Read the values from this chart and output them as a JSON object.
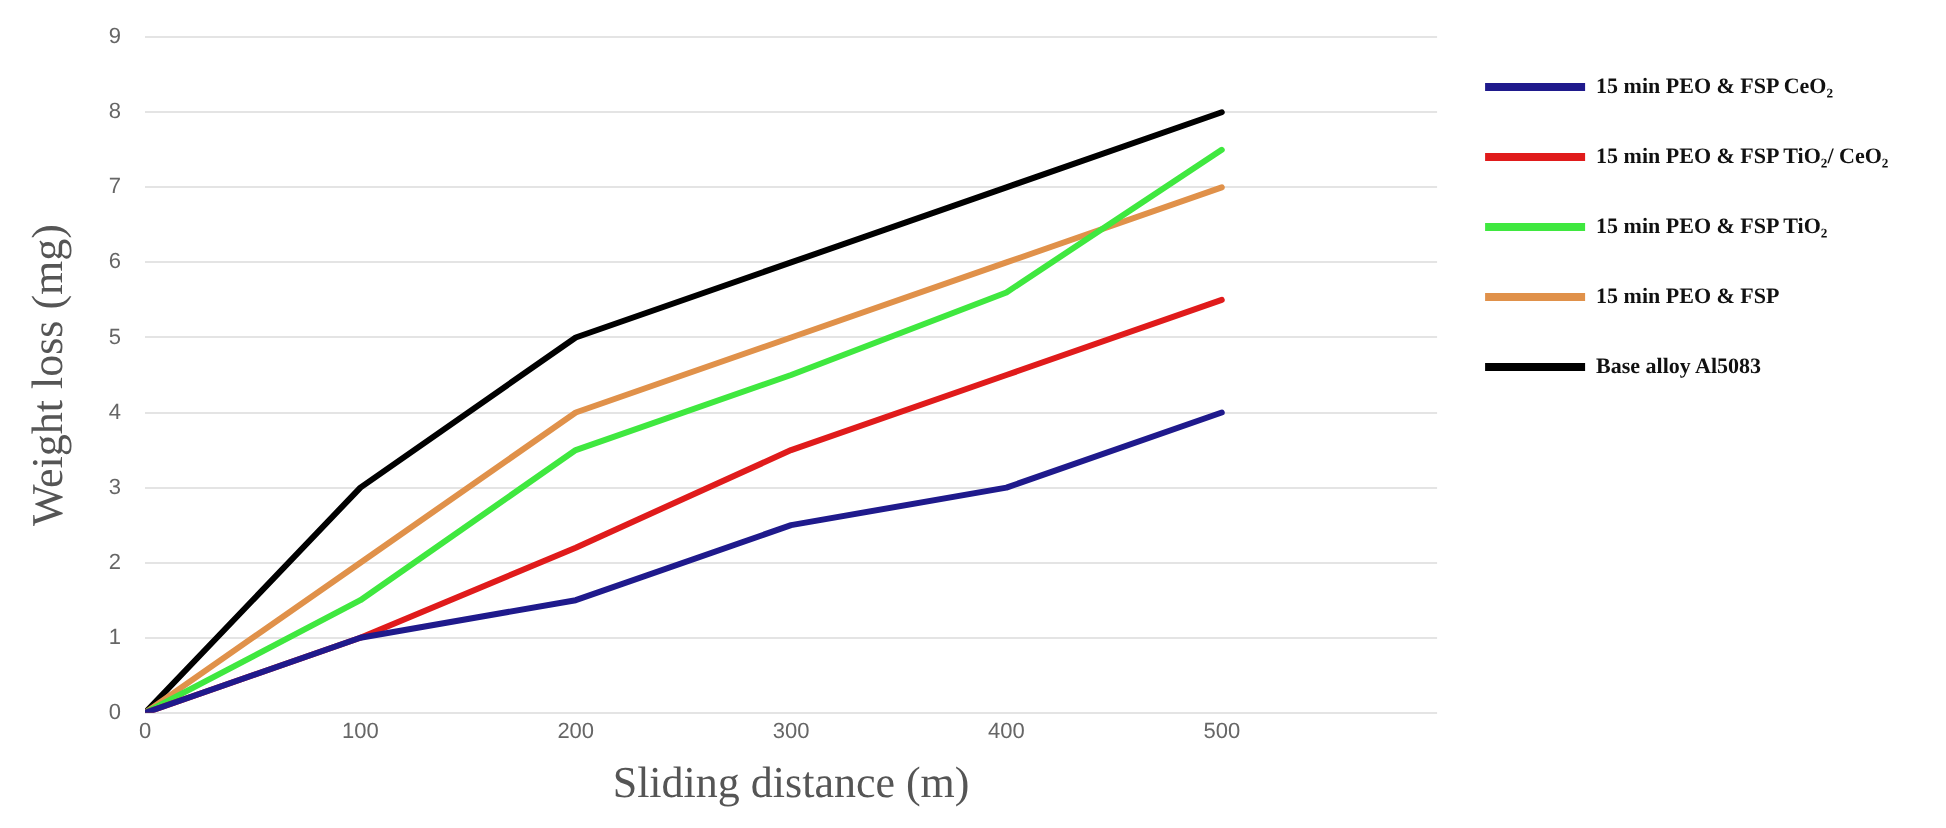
{
  "chart_data": {
    "type": "line",
    "xlabel": "Sliding distance (m)",
    "ylabel": "Weight loss (mg)",
    "x": [
      0,
      100,
      200,
      300,
      400,
      500
    ],
    "xlim": [
      0,
      600
    ],
    "xticks": [
      0,
      100,
      200,
      300,
      400,
      500
    ],
    "ylim": [
      0,
      9
    ],
    "yticks": [
      0,
      1,
      2,
      3,
      4,
      5,
      6,
      7,
      8,
      9
    ],
    "grid": "y",
    "legend": "right",
    "marker": "none",
    "series": [
      {
        "name": "15 min PEO & FSP CeO₂",
        "color": "#1f1a8c",
        "values": [
          0,
          1,
          1.5,
          2.5,
          3,
          4
        ]
      },
      {
        "name": "15 min PEO & FSP TiO₂/ CeO₂",
        "color": "#e01b1b",
        "values": [
          0,
          1,
          2.2,
          3.5,
          4.5,
          5.5
        ]
      },
      {
        "name": "15 min PEO & FSP TiO₂",
        "color": "#3fe83f",
        "values": [
          0,
          1.5,
          3.5,
          4.5,
          5.6,
          7.5
        ]
      },
      {
        "name": "15 min PEO & FSP",
        "color": "#e0914a",
        "values": [
          0,
          2,
          4,
          5,
          6,
          7
        ]
      },
      {
        "name": "Base alloy Al5083",
        "color": "#000000",
        "values": [
          0,
          3,
          5,
          6,
          7,
          8
        ]
      }
    ]
  }
}
